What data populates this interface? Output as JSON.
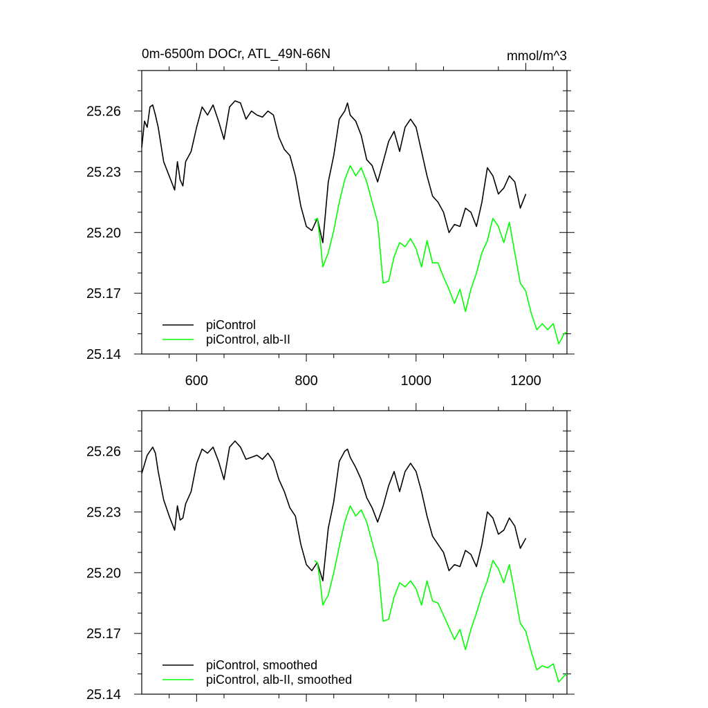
{
  "chart_data": [
    {
      "type": "line",
      "title": "0m-6500m DOCr, ATL_49N-66N",
      "units": "mmol/m^3",
      "xlim": [
        500,
        1275
      ],
      "ylim": [
        25.14,
        25.28
      ],
      "xticks": [
        600,
        800,
        1000,
        1200
      ],
      "xtick_labels": [
        "600",
        "800",
        "1000",
        "1200"
      ],
      "yticks": [
        25.14,
        25.17,
        25.2,
        25.23,
        25.26
      ],
      "ytick_labels": [
        "25.14",
        "25.17",
        "25.20",
        "25.23",
        "25.26"
      ],
      "legend_position": "bottom-left",
      "series": [
        {
          "name": "piControl",
          "color": "#000000",
          "x": [
            500,
            505,
            510,
            515,
            520,
            525,
            530,
            540,
            550,
            560,
            565,
            570,
            575,
            580,
            590,
            600,
            610,
            620,
            630,
            640,
            650,
            660,
            670,
            680,
            690,
            700,
            710,
            720,
            730,
            740,
            750,
            760,
            770,
            780,
            790,
            800,
            810,
            820,
            830,
            840,
            850,
            860,
            870,
            875,
            880,
            890,
            900,
            910,
            920,
            930,
            940,
            950,
            960,
            970,
            980,
            990,
            1000,
            1010,
            1020,
            1030,
            1040,
            1050,
            1060,
            1070,
            1080,
            1090,
            1100,
            1110,
            1120,
            1130,
            1140,
            1150,
            1160,
            1170,
            1180,
            1190,
            1200
          ],
          "values": [
            25.242,
            25.255,
            25.252,
            25.262,
            25.263,
            25.258,
            25.252,
            25.235,
            25.228,
            25.221,
            25.235,
            25.226,
            25.223,
            25.235,
            25.24,
            25.252,
            25.262,
            25.258,
            25.263,
            25.255,
            25.246,
            25.262,
            25.265,
            25.264,
            25.256,
            25.26,
            25.258,
            25.257,
            25.26,
            25.258,
            25.247,
            25.241,
            25.238,
            25.228,
            25.213,
            25.203,
            25.201,
            25.207,
            25.195,
            25.225,
            25.238,
            25.256,
            25.26,
            25.264,
            25.258,
            25.255,
            25.248,
            25.236,
            25.233,
            25.225,
            25.235,
            25.245,
            25.25,
            25.24,
            25.252,
            25.256,
            25.252,
            25.24,
            25.228,
            25.218,
            25.215,
            25.21,
            25.2,
            25.204,
            25.203,
            25.212,
            25.21,
            25.203,
            25.215,
            25.232,
            25.228,
            25.219,
            25.222,
            25.228,
            25.225,
            25.212,
            25.219
          ]
        },
        {
          "name": "piControl, alb-II",
          "color": "#00ff00",
          "x": [
            815,
            820,
            825,
            830,
            840,
            850,
            860,
            870,
            880,
            890,
            900,
            910,
            920,
            930,
            940,
            950,
            960,
            970,
            980,
            990,
            1000,
            1010,
            1020,
            1030,
            1040,
            1050,
            1060,
            1070,
            1080,
            1090,
            1100,
            1110,
            1120,
            1130,
            1140,
            1150,
            1160,
            1170,
            1180,
            1190,
            1200,
            1210,
            1220,
            1230,
            1240,
            1250,
            1260,
            1270,
            1275
          ],
          "values": [
            25.206,
            25.207,
            25.197,
            25.183,
            25.19,
            25.201,
            25.215,
            25.226,
            25.233,
            25.228,
            25.232,
            25.225,
            25.215,
            25.205,
            25.175,
            25.176,
            25.188,
            25.195,
            25.193,
            25.197,
            25.192,
            25.183,
            25.196,
            25.185,
            25.185,
            25.178,
            25.172,
            25.165,
            25.172,
            25.161,
            25.172,
            25.18,
            25.19,
            25.196,
            25.207,
            25.203,
            25.195,
            25.205,
            25.19,
            25.175,
            25.171,
            25.16,
            25.152,
            25.155,
            25.152,
            25.155,
            25.145,
            25.15,
            25.151
          ]
        }
      ]
    },
    {
      "type": "line",
      "title": "",
      "units": "",
      "xlim": [
        500,
        1275
      ],
      "ylim": [
        25.14,
        25.28
      ],
      "xticks": [
        600,
        800,
        1000,
        1200
      ],
      "xtick_labels": [],
      "yticks": [
        25.14,
        25.17,
        25.2,
        25.23,
        25.26
      ],
      "ytick_labels": [
        "25.14",
        "25.17",
        "25.20",
        "25.23",
        "25.26"
      ],
      "legend_position": "bottom-left",
      "series": [
        {
          "name": "piControl, smoothed",
          "color": "#000000",
          "x": [
            500,
            510,
            520,
            525,
            530,
            540,
            550,
            560,
            565,
            570,
            575,
            580,
            590,
            600,
            610,
            620,
            630,
            640,
            650,
            660,
            670,
            680,
            690,
            700,
            710,
            720,
            730,
            740,
            750,
            760,
            770,
            780,
            790,
            800,
            810,
            820,
            830,
            840,
            850,
            860,
            870,
            875,
            880,
            890,
            900,
            910,
            920,
            930,
            940,
            950,
            960,
            970,
            980,
            990,
            1000,
            1010,
            1020,
            1030,
            1040,
            1050,
            1060,
            1070,
            1080,
            1090,
            1100,
            1110,
            1120,
            1130,
            1140,
            1150,
            1160,
            1170,
            1180,
            1190,
            1200
          ],
          "values": [
            25.249,
            25.258,
            25.262,
            25.259,
            25.25,
            25.236,
            25.228,
            25.221,
            25.233,
            25.226,
            25.227,
            25.234,
            25.24,
            25.254,
            25.261,
            25.259,
            25.262,
            25.255,
            25.246,
            25.262,
            25.265,
            25.262,
            25.256,
            25.257,
            25.258,
            25.256,
            25.259,
            25.255,
            25.246,
            25.24,
            25.232,
            25.228,
            25.214,
            25.204,
            25.201,
            25.205,
            25.196,
            25.222,
            25.235,
            25.255,
            25.26,
            25.261,
            25.257,
            25.252,
            25.246,
            25.237,
            25.232,
            25.225,
            25.233,
            25.243,
            25.25,
            25.24,
            25.25,
            25.254,
            25.25,
            25.24,
            25.228,
            25.218,
            25.214,
            25.21,
            25.201,
            25.204,
            25.203,
            25.211,
            25.209,
            25.203,
            25.214,
            25.23,
            25.227,
            25.219,
            25.221,
            25.227,
            25.223,
            25.212,
            25.217
          ]
        },
        {
          "name": "piControl, alb-II, smoothed",
          "color": "#00ff00",
          "x": [
            815,
            820,
            825,
            830,
            840,
            850,
            860,
            870,
            880,
            890,
            900,
            910,
            920,
            930,
            940,
            950,
            960,
            970,
            980,
            990,
            1000,
            1010,
            1020,
            1030,
            1040,
            1050,
            1060,
            1070,
            1080,
            1090,
            1100,
            1110,
            1120,
            1130,
            1140,
            1150,
            1160,
            1170,
            1180,
            1190,
            1200,
            1210,
            1220,
            1230,
            1240,
            1250,
            1260,
            1270,
            1275
          ],
          "values": [
            25.206,
            25.205,
            25.196,
            25.184,
            25.189,
            25.2,
            25.213,
            25.225,
            25.233,
            25.228,
            25.231,
            25.225,
            25.215,
            25.205,
            25.176,
            25.177,
            25.188,
            25.195,
            25.193,
            25.196,
            25.192,
            25.184,
            25.196,
            25.186,
            25.185,
            25.179,
            25.173,
            25.167,
            25.172,
            25.162,
            25.172,
            25.18,
            25.189,
            25.196,
            25.206,
            25.202,
            25.195,
            25.204,
            25.19,
            25.175,
            25.171,
            25.161,
            25.152,
            25.154,
            25.153,
            25.155,
            25.146,
            25.149,
            25.15
          ]
        }
      ]
    }
  ]
}
